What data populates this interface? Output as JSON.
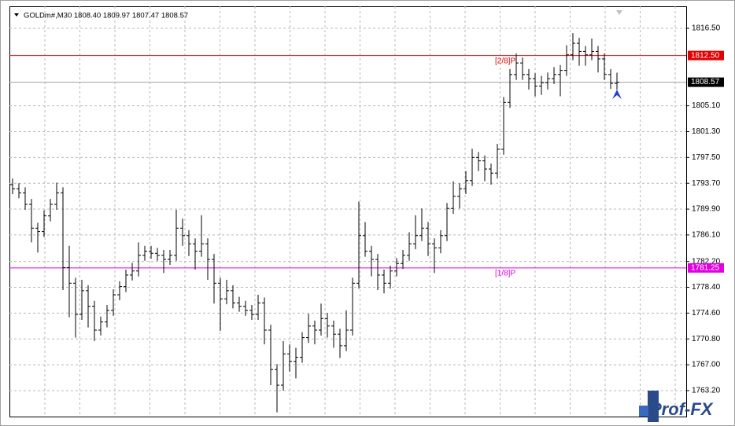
{
  "chart_data": {
    "type": "ohlc",
    "title": "GOLDm#,M30  1808.40 1809.97 1807.47 1808.57",
    "watermark": "Prof-FX",
    "bar_color": "#000000",
    "grid": true,
    "ylim": [
      1759.38,
      1819.74
    ],
    "yticks": [
      {
        "value": 1816.5,
        "label": "1816.50"
      },
      {
        "value": 1805.1,
        "label": "1805.10"
      },
      {
        "value": 1801.3,
        "label": "1801.30"
      },
      {
        "value": 1797.5,
        "label": "1797.50"
      },
      {
        "value": 1793.7,
        "label": "1793.70"
      },
      {
        "value": 1789.9,
        "label": "1789.90"
      },
      {
        "value": 1786.1,
        "label": "1786.10"
      },
      {
        "value": 1782.2,
        "label": "1782.20"
      },
      {
        "value": 1778.4,
        "label": "1778.40"
      },
      {
        "value": 1774.6,
        "label": "1774.60"
      },
      {
        "value": 1770.8,
        "label": "1770.80"
      },
      {
        "value": 1767,
        "label": "1767.00"
      },
      {
        "value": 1763.2,
        "label": "1763.20"
      }
    ],
    "levels": [
      {
        "name": "[2/8]P",
        "value": 1812.5,
        "value_label": "1812.50",
        "color": "#e00000"
      },
      {
        "name": "[1/8]P",
        "value": 1781.25,
        "value_label": "1781.25",
        "color": "#e000e0"
      }
    ],
    "current_price": {
      "value": 1808.57,
      "label": "1808.57"
    },
    "bars": [
      [
        1793.5,
        1794.4,
        1792.1,
        1792.9
      ],
      [
        1792.9,
        1793.7,
        1791.5,
        1792.3
      ],
      [
        1792.3,
        1793.1,
        1789.8,
        1790.6
      ],
      [
        1790.6,
        1791.4,
        1785.0,
        1787.1
      ],
      [
        1787.1,
        1787.9,
        1783.5,
        1786.6
      ],
      [
        1786.6,
        1789.7,
        1785.8,
        1788.9
      ],
      [
        1788.9,
        1791.4,
        1788.1,
        1790.6
      ],
      [
        1790.6,
        1793.8,
        1789.8,
        1792.3
      ],
      [
        1792.3,
        1793.1,
        1778.0,
        1781.3
      ],
      [
        1781.3,
        1784.5,
        1774.0,
        1779.0
      ],
      [
        1779.0,
        1779.8,
        1771.0,
        1774.4
      ],
      [
        1774.4,
        1779.5,
        1773.6,
        1777.9
      ],
      [
        1777.9,
        1778.7,
        1772.5,
        1775.6
      ],
      [
        1775.6,
        1776.4,
        1770.5,
        1772.1
      ],
      [
        1772.1,
        1774.1,
        1771.3,
        1773.3
      ],
      [
        1773.3,
        1775.8,
        1772.5,
        1775.0
      ],
      [
        1775.0,
        1778.1,
        1774.2,
        1777.3
      ],
      [
        1777.3,
        1779.3,
        1776.5,
        1778.5
      ],
      [
        1778.5,
        1781.0,
        1777.7,
        1780.2
      ],
      [
        1780.2,
        1782.0,
        1779.4,
        1780.8
      ],
      [
        1780.8,
        1785.0,
        1780.0,
        1783.1
      ],
      [
        1783.1,
        1784.5,
        1782.3,
        1783.7
      ],
      [
        1783.7,
        1784.5,
        1782.6,
        1783.4
      ],
      [
        1783.4,
        1784.2,
        1782.3,
        1783.1
      ],
      [
        1783.1,
        1783.9,
        1780.5,
        1782.5
      ],
      [
        1782.5,
        1783.9,
        1781.7,
        1783.1
      ],
      [
        1783.1,
        1789.8,
        1782.3,
        1787.1
      ],
      [
        1787.1,
        1788.5,
        1784.5,
        1786.0
      ],
      [
        1786.0,
        1786.8,
        1783.0,
        1784.8
      ],
      [
        1784.8,
        1785.6,
        1781.0,
        1783.7
      ],
      [
        1783.7,
        1789.0,
        1782.9,
        1784.8
      ],
      [
        1784.8,
        1785.6,
        1779.5,
        1782.5
      ],
      [
        1782.5,
        1783.3,
        1776.0,
        1779.0
      ],
      [
        1779.0,
        1779.8,
        1772.0,
        1776.7
      ],
      [
        1776.7,
        1779.5,
        1775.9,
        1777.9
      ],
      [
        1777.9,
        1778.7,
        1775.3,
        1776.1
      ],
      [
        1776.1,
        1777.0,
        1774.8,
        1775.6
      ],
      [
        1775.6,
        1776.4,
        1774.2,
        1775.0
      ],
      [
        1775.0,
        1775.8,
        1773.6,
        1774.4
      ],
      [
        1774.4,
        1777.3,
        1773.6,
        1776.1
      ],
      [
        1776.1,
        1776.9,
        1770.0,
        1772.1
      ],
      [
        1772.1,
        1772.9,
        1764.0,
        1766.3
      ],
      [
        1766.3,
        1767.1,
        1760.0,
        1764.0
      ],
      [
        1764.0,
        1770.5,
        1763.2,
        1768.6
      ],
      [
        1768.6,
        1770.0,
        1766.0,
        1767.5
      ],
      [
        1767.5,
        1769.5,
        1765.0,
        1768.1
      ],
      [
        1768.1,
        1771.8,
        1767.3,
        1771.0
      ],
      [
        1771.0,
        1774.5,
        1770.2,
        1772.7
      ],
      [
        1772.7,
        1773.5,
        1770.0,
        1772.1
      ],
      [
        1772.1,
        1776.0,
        1771.3,
        1773.8
      ],
      [
        1773.8,
        1774.6,
        1771.0,
        1772.7
      ],
      [
        1772.7,
        1773.5,
        1769.5,
        1771.5
      ],
      [
        1771.5,
        1772.3,
        1768.0,
        1769.8
      ],
      [
        1769.8,
        1775.0,
        1769.0,
        1772.1
      ],
      [
        1772.1,
        1779.8,
        1771.3,
        1779.0
      ],
      [
        1779.0,
        1791.0,
        1778.2,
        1786.0
      ],
      [
        1786.0,
        1788.0,
        1782.9,
        1783.7
      ],
      [
        1783.7,
        1784.5,
        1780.0,
        1782.5
      ],
      [
        1782.5,
        1783.3,
        1778.0,
        1780.2
      ],
      [
        1780.2,
        1781.0,
        1777.5,
        1779.0
      ],
      [
        1779.0,
        1781.6,
        1778.2,
        1780.8
      ],
      [
        1780.8,
        1782.7,
        1780.0,
        1781.9
      ],
      [
        1781.9,
        1783.9,
        1781.1,
        1783.1
      ],
      [
        1783.1,
        1786.5,
        1782.3,
        1784.8
      ],
      [
        1784.8,
        1789.0,
        1784.0,
        1786.0
      ],
      [
        1786.0,
        1790.0,
        1785.2,
        1787.1
      ],
      [
        1787.1,
        1788.0,
        1783.0,
        1784.8
      ],
      [
        1784.8,
        1785.6,
        1780.5,
        1784.2
      ],
      [
        1784.2,
        1786.8,
        1783.4,
        1786.0
      ],
      [
        1786.0,
        1790.8,
        1785.2,
        1790.0
      ],
      [
        1790.0,
        1794.0,
        1789.2,
        1791.8
      ],
      [
        1791.8,
        1793.7,
        1790.0,
        1792.9
      ],
      [
        1792.9,
        1795.5,
        1792.1,
        1794.1
      ],
      [
        1794.1,
        1798.8,
        1793.3,
        1797.5
      ],
      [
        1797.5,
        1798.3,
        1795.5,
        1797.0
      ],
      [
        1797.0,
        1797.8,
        1794.0,
        1795.8
      ],
      [
        1795.8,
        1796.6,
        1793.5,
        1795.2
      ],
      [
        1795.2,
        1799.5,
        1794.4,
        1798.7
      ],
      [
        1798.7,
        1806.4,
        1797.9,
        1805.6
      ],
      [
        1805.6,
        1810.5,
        1804.8,
        1809.7
      ],
      [
        1809.7,
        1812.8,
        1808.9,
        1811.4
      ],
      [
        1811.4,
        1812.2,
        1808.9,
        1809.7
      ],
      [
        1809.7,
        1810.5,
        1807.5,
        1809.1
      ],
      [
        1809.1,
        1809.9,
        1806.5,
        1808.0
      ],
      [
        1808.0,
        1809.5,
        1806.7,
        1808.5
      ],
      [
        1808.5,
        1810.0,
        1807.5,
        1809.1
      ],
      [
        1809.1,
        1810.8,
        1808.3,
        1809.7
      ],
      [
        1809.7,
        1811.1,
        1806.5,
        1810.3
      ],
      [
        1810.3,
        1814.0,
        1809.5,
        1812.6
      ],
      [
        1812.6,
        1815.8,
        1811.8,
        1814.3
      ],
      [
        1814.3,
        1815.1,
        1811.0,
        1813.1
      ],
      [
        1813.1,
        1813.9,
        1811.0,
        1812.6
      ],
      [
        1812.6,
        1815.0,
        1811.8,
        1813.1
      ],
      [
        1813.1,
        1813.9,
        1810.0,
        1812.0
      ],
      [
        1812.0,
        1812.8,
        1808.9,
        1809.7
      ],
      [
        1809.7,
        1810.5,
        1807.6,
        1808.4
      ],
      [
        1808.4,
        1809.97,
        1807.47,
        1808.57
      ]
    ]
  }
}
